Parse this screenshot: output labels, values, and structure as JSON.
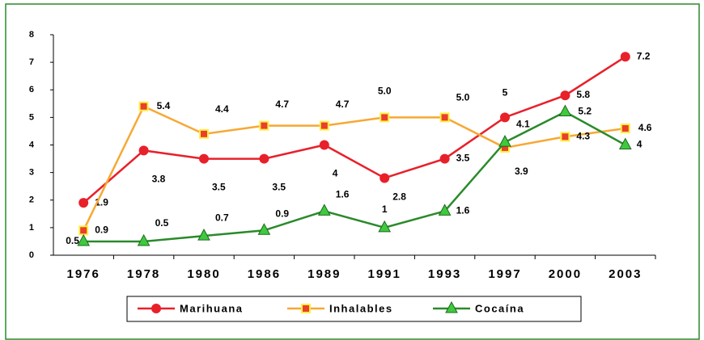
{
  "chart_data": {
    "type": "line",
    "categories": [
      "1976",
      "1978",
      "1980",
      "1986",
      "1989",
      "1991",
      "1993",
      "1997",
      "2000",
      "2003"
    ],
    "series": [
      {
        "name": "Marihuana",
        "color": "#e8202a",
        "values": [
          1.9,
          3.8,
          3.5,
          3.5,
          4,
          2.8,
          3.5,
          5,
          5.8,
          7.2
        ]
      },
      {
        "name": "Inhalables",
        "color": "#f7a833",
        "values": [
          0.9,
          5.4,
          4.4,
          4.7,
          4.7,
          5.0,
          5.0,
          3.9,
          4.3,
          4.6
        ],
        "value_labels": [
          "0.9",
          "5.4",
          "4.4",
          "4.7",
          "4.7",
          "5.0",
          "5.0",
          "3.9",
          "4.3",
          "4.6"
        ]
      },
      {
        "name": "Cocaína",
        "color": "#2a8a2a",
        "values": [
          0.5,
          0.5,
          0.7,
          0.9,
          1.6,
          1,
          1.6,
          4.1,
          5.2,
          4
        ]
      }
    ],
    "ylim": [
      0,
      8
    ],
    "yticks": [
      0,
      1,
      2,
      3,
      4,
      5,
      6,
      7,
      8
    ],
    "legend": "bottom"
  }
}
